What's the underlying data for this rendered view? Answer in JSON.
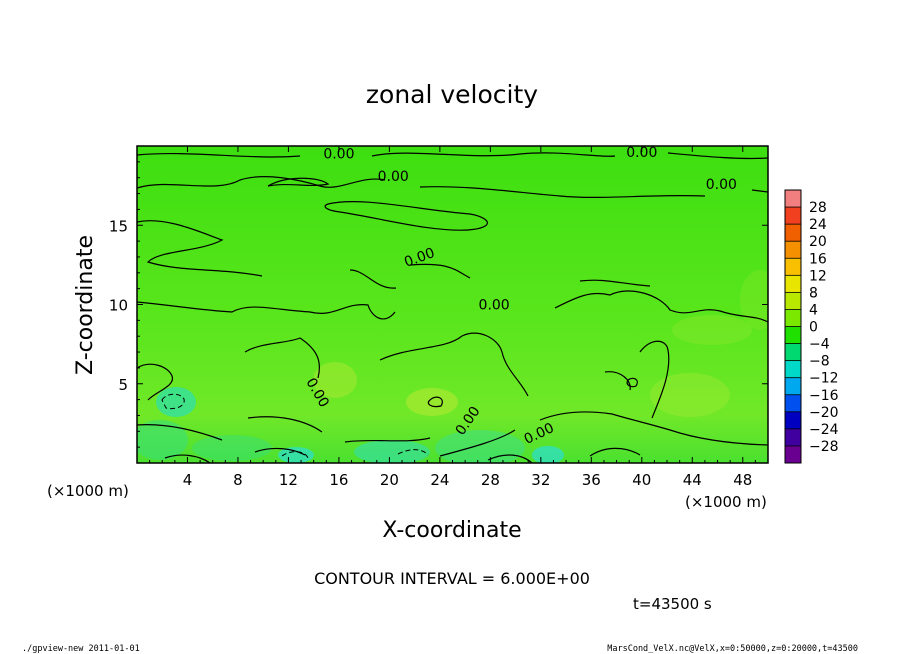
{
  "chart_data": {
    "type": "heatmap",
    "title": "zonal velocity",
    "xlabel": "X-coordinate",
    "ylabel": "Z-coordinate",
    "x_unit_left": "(×1000 m)",
    "x_unit_right": "(×1000 m)",
    "xlim": [
      0,
      50
    ],
    "ylim": [
      0,
      20
    ],
    "x_ticks": [
      4,
      8,
      12,
      16,
      20,
      24,
      28,
      32,
      36,
      40,
      44,
      48
    ],
    "y_ticks": [
      5,
      10,
      15
    ],
    "colorbar": {
      "labels": [
        28,
        24,
        20,
        16,
        12,
        8,
        4,
        0,
        -4,
        -8,
        -12,
        -16,
        -20,
        -24,
        -28
      ],
      "display": [
        "28",
        "24",
        "20",
        "16",
        "12",
        "8",
        "4",
        "0",
        "−4",
        "−8",
        "−12",
        "−16",
        "−20",
        "−24",
        "−28"
      ],
      "colors": [
        "#f27f7f",
        "#f04020",
        "#f06000",
        "#f59000",
        "#f8c000",
        "#e8e600",
        "#b8e800",
        "#7be800",
        "#20e000",
        "#00d870",
        "#00d8c8",
        "#00a8f0",
        "#0050f0",
        "#0000c0",
        "#4000a0",
        "#6a0090"
      ]
    },
    "contour_labels": [
      {
        "text": "0.00",
        "x": 16.0,
        "y": 19.2,
        "angle": 0
      },
      {
        "text": "0.00",
        "x": 20.3,
        "y": 17.8,
        "angle": 0
      },
      {
        "text": "0.00",
        "x": 40.0,
        "y": 19.3,
        "angle": 0
      },
      {
        "text": "0.00",
        "x": 46.3,
        "y": 17.3,
        "angle": 0
      },
      {
        "text": "0.00",
        "x": 22.5,
        "y": 12.7,
        "angle": -20
      },
      {
        "text": "0.00",
        "x": 28.3,
        "y": 9.7,
        "angle": 0
      },
      {
        "text": "0.00",
        "x": 14.0,
        "y": 4.3,
        "angle": 60
      },
      {
        "text": "0.00",
        "x": 26.5,
        "y": 2.5,
        "angle": -55
      },
      {
        "text": "0.00",
        "x": 32.0,
        "y": 1.6,
        "angle": -25
      }
    ],
    "contour_interval_text": "CONTOUR INTERVAL = 6.000E+00",
    "time_text": "t=43500 s"
  },
  "footer": {
    "left": "./gpview-new  2011-01-01",
    "right": "MarsCond_VelX.nc@VelX,x=0:50000,z=0:20000,t=43500"
  }
}
